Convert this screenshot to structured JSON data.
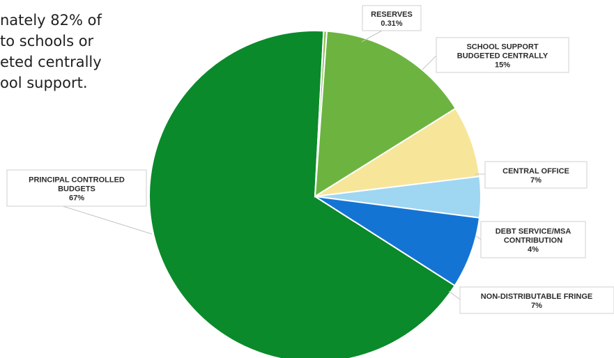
{
  "intro_lines": [
    "nately 82% of",
    "to schools or",
    "eted centrally",
    "ool support."
  ],
  "chart_data": {
    "type": "pie",
    "title": "",
    "slices": [
      {
        "label": "PRINCIPAL CONTROLLED BUDGETS",
        "value": 67,
        "display": "67%",
        "color": "#0a8a2a"
      },
      {
        "label": "RESERVES",
        "value": 0.31,
        "display": "0.31%",
        "color": "#8fbf5a"
      },
      {
        "label": "SCHOOL SUPPORT BUDGETED CENTRALLY",
        "value": 15,
        "display": "15%",
        "color": "#6cb43f"
      },
      {
        "label": "CENTRAL OFFICE",
        "value": 7,
        "display": "7%",
        "color": "#f7e59a"
      },
      {
        "label": "DEBT SERVICE/MSA CONTRIBUTION",
        "value": 4,
        "display": "4%",
        "color": "#9fd6f2"
      },
      {
        "label": "NON-DISTRIBUTABLE FRINGE",
        "value": 7,
        "display": "7%",
        "color": "#1474d4"
      }
    ]
  }
}
